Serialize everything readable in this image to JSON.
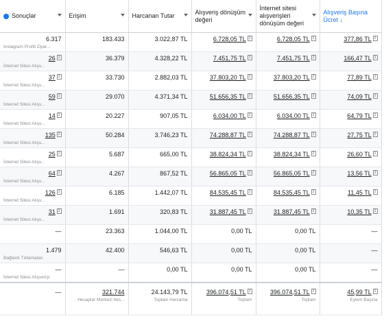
{
  "note_label": "2",
  "header": [
    {
      "text": "Sonuçlar",
      "info": true
    },
    {
      "text": "Erişim"
    },
    {
      "text": "Harcanan Tutar"
    },
    {
      "text": "Alışveriş dönüşüm değeri"
    },
    {
      "text": "İnternet sitesi alışverişleri dönüşüm değeri"
    },
    {
      "text": "Alışveriş Başına Ücret ↓",
      "sorted": true
    }
  ],
  "rows": [
    [
      {
        "text": "6.317",
        "sub": "Instagram Profili Ziyar..."
      },
      {
        "text": "183.433"
      },
      {
        "text": "3.022,87 TL"
      },
      {
        "text": "6.728,05 TL",
        "link": true,
        "note": true
      },
      {
        "text": "6.728,05 TL",
        "link": true,
        "note": true
      },
      {
        "text": "377,86 TL",
        "link": true,
        "note": true
      }
    ],
    [
      {
        "text": "26",
        "sub": "İnternet Sitesi Alışv...",
        "link": true,
        "note": true
      },
      {
        "text": "36.379"
      },
      {
        "text": "4.328,22 TL"
      },
      {
        "text": "7.451,75 TL",
        "link": true,
        "note": true
      },
      {
        "text": "7.451,75 TL",
        "link": true,
        "note": true
      },
      {
        "text": "166,47 TL",
        "link": true,
        "note": true
      }
    ],
    [
      {
        "text": "37",
        "sub": "İnternet Sitesi Alışv...",
        "link": true,
        "note": true
      },
      {
        "text": "33.730"
      },
      {
        "text": "2.882,03 TL"
      },
      {
        "text": "37.803,20 TL",
        "link": true,
        "note": true
      },
      {
        "text": "37.803,20 TL",
        "link": true,
        "note": true
      },
      {
        "text": "77,89 TL",
        "link": true,
        "note": true
      }
    ],
    [
      {
        "text": "59",
        "sub": "İnternet Sitesi Alışv...",
        "link": true,
        "note": true
      },
      {
        "text": "29.070"
      },
      {
        "text": "4.371,34 TL"
      },
      {
        "text": "51.656,35 TL",
        "link": true,
        "note": true
      },
      {
        "text": "51.656,35 TL",
        "link": true,
        "note": true
      },
      {
        "text": "74,09 TL",
        "link": true,
        "note": true
      }
    ],
    [
      {
        "text": "14",
        "sub": "İnternet Sitesi Alışv...",
        "link": true,
        "note": true
      },
      {
        "text": "20.227"
      },
      {
        "text": "907,05 TL"
      },
      {
        "text": "6.034,00 TL",
        "link": true,
        "note": true
      },
      {
        "text": "6.034,00 TL",
        "link": true,
        "note": true
      },
      {
        "text": "64,79 TL",
        "link": true,
        "note": true
      }
    ],
    [
      {
        "text": "135",
        "sub": "İnternet Sitesi Alışv...",
        "link": true,
        "note": true
      },
      {
        "text": "50.284"
      },
      {
        "text": "3.746,23 TL"
      },
      {
        "text": "74.288,87 TL",
        "link": true,
        "note": true
      },
      {
        "text": "74.288,87 TL",
        "link": true,
        "note": true
      },
      {
        "text": "27,75 TL",
        "link": true,
        "note": true
      }
    ],
    [
      {
        "text": "25",
        "sub": "İnternet Sitesi Alışv...",
        "link": true,
        "note": true
      },
      {
        "text": "5.687"
      },
      {
        "text": "665,00 TL"
      },
      {
        "text": "38.824,34 TL",
        "link": true,
        "note": true
      },
      {
        "text": "38.824,34 TL",
        "link": true,
        "note": true
      },
      {
        "text": "26,60 TL",
        "link": true,
        "note": true
      }
    ],
    [
      {
        "text": "64",
        "sub": "İnternet Sitesi Alışv...",
        "link": true,
        "note": true
      },
      {
        "text": "4.267"
      },
      {
        "text": "867,52 TL"
      },
      {
        "text": "56.865,05 TL",
        "link": true,
        "note": true
      },
      {
        "text": "56.865,05 TL",
        "link": true,
        "note": true
      },
      {
        "text": "13,56 TL",
        "link": true,
        "note": true
      }
    ],
    [
      {
        "text": "126",
        "sub": "İnternet Sitesi Alışv...",
        "link": true,
        "note": true
      },
      {
        "text": "6.185"
      },
      {
        "text": "1.442,07 TL"
      },
      {
        "text": "84.535,45 TL",
        "link": true,
        "note": true
      },
      {
        "text": "84.535,45 TL",
        "link": true,
        "note": true
      },
      {
        "text": "11,45 TL",
        "link": true,
        "note": true
      }
    ],
    [
      {
        "text": "31",
        "sub": "İnternet Sitesi Alışv...",
        "link": true,
        "note": true
      },
      {
        "text": "1.691"
      },
      {
        "text": "320,83 TL"
      },
      {
        "text": "31.887,45 TL",
        "link": true,
        "note": true
      },
      {
        "text": "31.887,45 TL",
        "link": true,
        "note": true
      },
      {
        "text": "10,35 TL",
        "link": true,
        "note": true
      }
    ],
    [
      {
        "text": "—"
      },
      {
        "text": "23.363"
      },
      {
        "text": "1.044,00 TL"
      },
      {
        "text": "0,00 TL"
      },
      {
        "text": "0,00 TL"
      },
      {
        "text": "—"
      }
    ],
    [
      {
        "text": "1.479",
        "sub": "Bağlantı Tıklamaları"
      },
      {
        "text": "42.400"
      },
      {
        "text": "546,63 TL"
      },
      {
        "text": "0,00 TL"
      },
      {
        "text": "0,00 TL"
      },
      {
        "text": "—"
      }
    ],
    [
      {
        "text": "—",
        "sub": "İnternet Sitesi Alışverişi"
      },
      {
        "text": "—"
      },
      {
        "text": "0,00 TL"
      },
      {
        "text": "0,00 TL"
      },
      {
        "text": "0,00 TL"
      },
      {
        "text": "—"
      }
    ]
  ],
  "footer": [
    {
      "text": "—"
    },
    {
      "text": "321.744",
      "sub": "Hesaplar Merkezi hes...",
      "link": true
    },
    {
      "text": "24.143,79 TL",
      "sub": "Toplam Harcama"
    },
    {
      "text": "396.074,51 TL",
      "sub": "Toplam",
      "link": true,
      "note": true
    },
    {
      "text": "396.074,51 TL",
      "sub": "Toplam",
      "link": true,
      "note": true
    },
    {
      "text": "45,99 TL",
      "sub": "Eylem Başına",
      "link": true,
      "note": true
    }
  ]
}
